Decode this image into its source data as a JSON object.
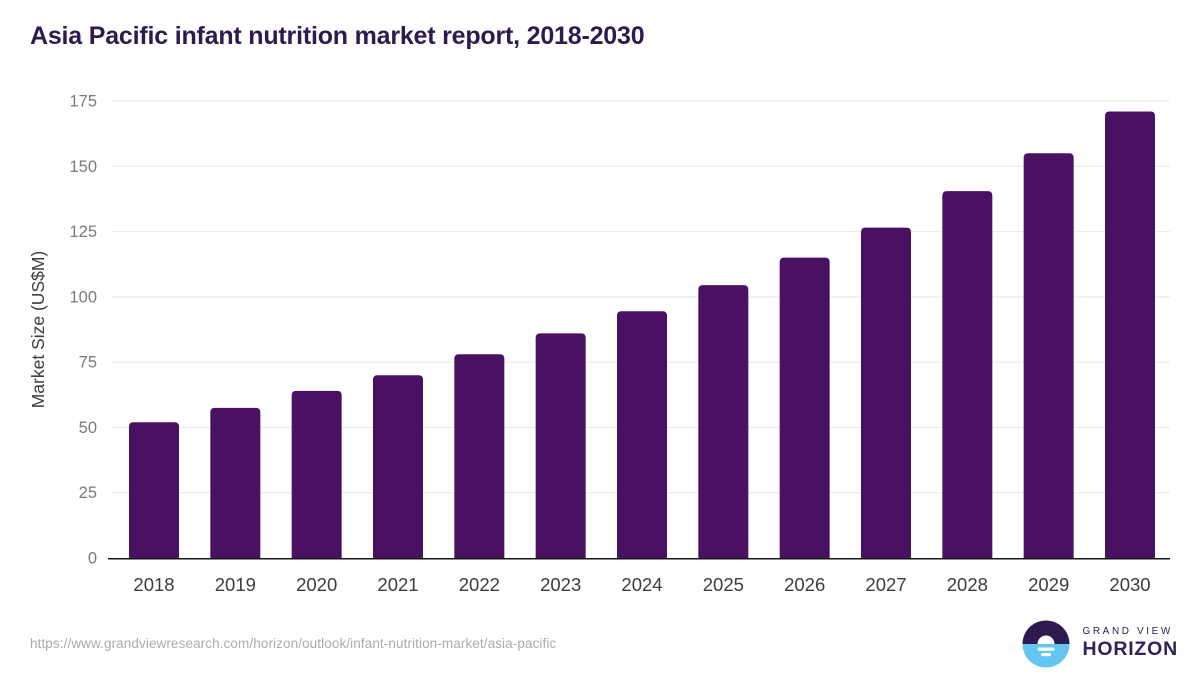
{
  "header": {
    "title": "Asia Pacific infant nutrition market report, 2018-2030"
  },
  "chart_data": {
    "type": "bar",
    "title": "Asia Pacific infant nutrition market report, 2018-2030",
    "categories": [
      "2018",
      "2019",
      "2020",
      "2021",
      "2022",
      "2023",
      "2024",
      "2025",
      "2026",
      "2027",
      "2028",
      "2029",
      "2030"
    ],
    "values": [
      52,
      57.5,
      64,
      70,
      78,
      86,
      94.5,
      104.5,
      115,
      126.5,
      140.5,
      155,
      171
    ],
    "xlabel": "",
    "ylabel": "Market Size (US$M)",
    "ylim": [
      0,
      175
    ],
    "ytick_step": 25,
    "grid": true,
    "legend_position": "none"
  },
  "colors": {
    "title": "#2e1a4e",
    "bar": "#4a1062",
    "grid": "#e8e8e8",
    "axis": "#161616",
    "y_tick_label": "#7a7a7a",
    "x_tick_label": "#3d3d3d",
    "axis_title": "#3d3d3d",
    "footer_text": "#ababab",
    "logo_purple": "#2e1a4e",
    "logo_blue": "#64c5f0"
  },
  "footer": {
    "source_url": "https://www.grandviewresearch.com/horizon/outlook/infant-nutrition-market/asia-pacific",
    "logo": {
      "line1": "GRAND VIEW",
      "line2": "HORIZON"
    }
  }
}
